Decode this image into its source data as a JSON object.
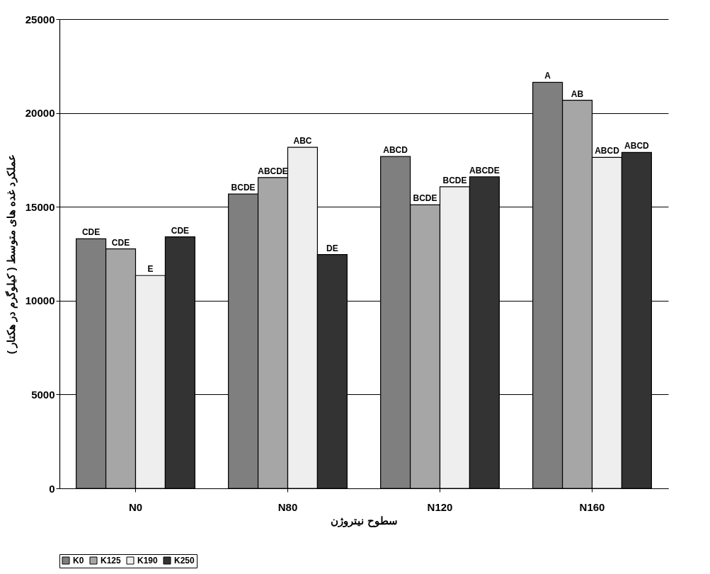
{
  "chart_data": {
    "type": "bar",
    "xlabel": "سطوح نیتروژن",
    "ylabel": "عملکرد غده های متوسط ( کیلوگرم در هکتار )",
    "categories": [
      "N0",
      "N80",
      "N120",
      "N160"
    ],
    "series": [
      {
        "name": "K0",
        "color": "#7f7f7f",
        "values": [
          13300,
          15680,
          17680,
          21630
        ],
        "value_labels": [
          "CDE",
          "BCDE",
          "ABCD",
          "A"
        ]
      },
      {
        "name": "K125",
        "color": "#a6a6a6",
        "values": [
          12760,
          16560,
          15110,
          20680
        ],
        "value_labels": [
          "CDE",
          "ABCDE",
          "BCDE",
          "AB"
        ]
      },
      {
        "name": "K190",
        "color": "#eeeeee",
        "values": [
          11340,
          18170,
          16070,
          17630
        ],
        "value_labels": [
          "E",
          "ABC",
          "BCDE",
          "ABCD"
        ]
      },
      {
        "name": "K250",
        "color": "#333333",
        "values": [
          13400,
          12460,
          16600,
          17900
        ],
        "value_labels": [
          "CDE",
          "DE",
          "ABCDE",
          "ABCD"
        ]
      }
    ],
    "ylim": [
      0,
      25000
    ],
    "yticks": [
      0,
      5000,
      10000,
      15000,
      20000,
      25000
    ],
    "grid": "y",
    "legend": "bottom"
  }
}
